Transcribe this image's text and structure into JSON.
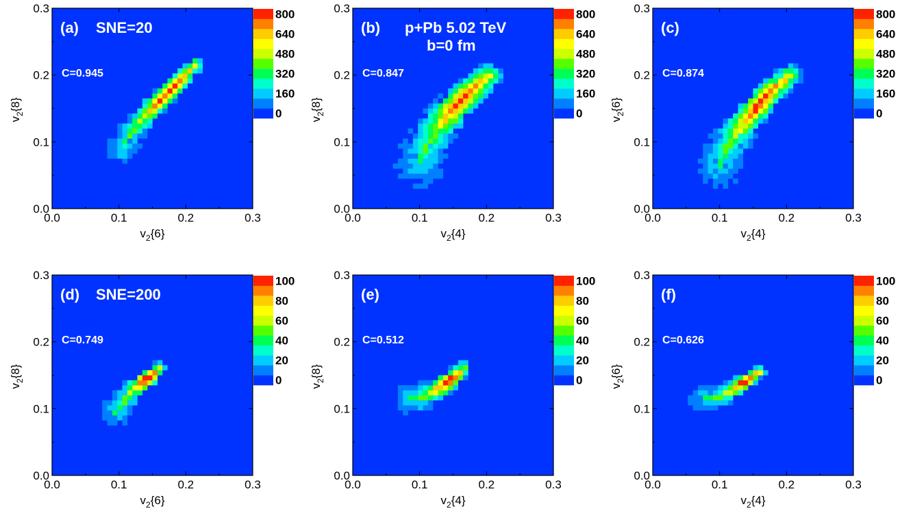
{
  "colors": {
    "plot_bg": "#0033ff",
    "frame": "#000000",
    "annotation_text": "#ffffff",
    "colormap": [
      "#0033ff",
      "#0080ff",
      "#00ccff",
      "#00ffcc",
      "#00ff55",
      "#55ff00",
      "#ccff00",
      "#ffff00",
      "#ffcc00",
      "#ff8000",
      "#ff2200"
    ]
  },
  "chart_data": [
    {
      "type": "heatmap",
      "panel": "(a)",
      "title": "SNE=20",
      "subtitle": "",
      "correlation": "C=0.945",
      "xlabel": "v2{6}",
      "ylabel": "v2{8}",
      "xlim": [
        0,
        0.3
      ],
      "ylim": [
        0,
        0.3
      ],
      "xticks": [
        "0.0",
        "0.1",
        "0.2",
        "0.3"
      ],
      "yticks": [
        "0.0",
        "0.1",
        "0.2",
        "0.3"
      ],
      "colorbar": {
        "min": 0,
        "max": 880,
        "ticks": [
          "0",
          "160",
          "320",
          "480",
          "640",
          "800"
        ]
      },
      "bin_width": 0.0075,
      "ridge": [
        [
          0.105,
          0.09
        ],
        [
          0.115,
          0.11
        ],
        [
          0.13,
          0.13
        ],
        [
          0.15,
          0.15
        ],
        [
          0.17,
          0.17
        ],
        [
          0.19,
          0.19
        ],
        [
          0.215,
          0.215
        ]
      ],
      "halo": 0.024,
      "slope": 1.0
    },
    {
      "type": "heatmap",
      "panel": "(b)",
      "title": "p+Pb 5.02 TeV",
      "subtitle": "b=0 fm",
      "correlation": "C=0.847",
      "xlabel": "v2{4}",
      "ylabel": "v2{8}",
      "xlim": [
        0,
        0.3
      ],
      "ylim": [
        0,
        0.3
      ],
      "xticks": [
        "0.0",
        "0.1",
        "0.2",
        "0.3"
      ],
      "yticks": [
        "0.0",
        "0.1",
        "0.2",
        "0.3"
      ],
      "colorbar": {
        "min": 0,
        "max": 880,
        "ticks": [
          "0",
          "160",
          "320",
          "480",
          "640",
          "800"
        ]
      },
      "bin_width": 0.0075,
      "ridge": [
        [
          0.1,
          0.07
        ],
        [
          0.11,
          0.09
        ],
        [
          0.13,
          0.125
        ],
        [
          0.15,
          0.15
        ],
        [
          0.17,
          0.17
        ],
        [
          0.205,
          0.2
        ]
      ],
      "halo": 0.038,
      "slope": 0.95
    },
    {
      "type": "heatmap",
      "panel": "(c)",
      "title": "",
      "subtitle": "",
      "correlation": "C=0.874",
      "xlabel": "v2{4}",
      "ylabel": "v2{6}",
      "xlim": [
        0,
        0.3
      ],
      "ylim": [
        0,
        0.3
      ],
      "xticks": [
        "0.0",
        "0.1",
        "0.2",
        "0.3"
      ],
      "yticks": [
        "0.0",
        "0.1",
        "0.2",
        "0.3"
      ],
      "colorbar": {
        "min": 0,
        "max": 880,
        "ticks": [
          "0",
          "160",
          "320",
          "480",
          "640",
          "800"
        ]
      },
      "bin_width": 0.0075,
      "ridge": [
        [
          0.1,
          0.065
        ],
        [
          0.11,
          0.09
        ],
        [
          0.13,
          0.12
        ],
        [
          0.15,
          0.145
        ],
        [
          0.17,
          0.17
        ],
        [
          0.205,
          0.2
        ]
      ],
      "halo": 0.034,
      "slope": 0.97
    },
    {
      "type": "heatmap",
      "panel": "(d)",
      "title": "SNE=200",
      "subtitle": "",
      "correlation": "C=0.749",
      "xlabel": "v2{6}",
      "ylabel": "v2{8}",
      "xlim": [
        0,
        0.3
      ],
      "ylim": [
        0,
        0.3
      ],
      "xticks": [
        "0.0",
        "0.1",
        "0.2",
        "0.3"
      ],
      "yticks": [
        "0.0",
        "0.1",
        "0.2",
        "0.3"
      ],
      "colorbar": {
        "min": 0,
        "max": 110,
        "ticks": [
          "0",
          "20",
          "40",
          "60",
          "80",
          "100"
        ]
      },
      "bin_width": 0.0075,
      "ridge": [
        [
          0.095,
          0.095
        ],
        [
          0.11,
          0.115
        ],
        [
          0.12,
          0.125
        ],
        [
          0.135,
          0.14
        ],
        [
          0.15,
          0.15
        ],
        [
          0.16,
          0.16
        ]
      ],
      "halo": 0.022,
      "slope": 1.0
    },
    {
      "type": "heatmap",
      "panel": "(e)",
      "title": "",
      "subtitle": "",
      "correlation": "C=0.512",
      "xlabel": "v2{4}",
      "ylabel": "v2{8}",
      "xlim": [
        0,
        0.3
      ],
      "ylim": [
        0,
        0.3
      ],
      "xticks": [
        "0.0",
        "0.1",
        "0.2",
        "0.3"
      ],
      "yticks": [
        "0.0",
        "0.1",
        "0.2",
        "0.3"
      ],
      "colorbar": {
        "min": 0,
        "max": 110,
        "ticks": [
          "0",
          "20",
          "40",
          "60",
          "80",
          "100"
        ]
      },
      "bin_width": 0.0075,
      "ridge": [
        [
          0.085,
          0.115
        ],
        [
          0.1,
          0.115
        ],
        [
          0.12,
          0.125
        ],
        [
          0.135,
          0.135
        ],
        [
          0.15,
          0.145
        ],
        [
          0.165,
          0.16
        ]
      ],
      "halo": 0.024,
      "slope": 0.5
    },
    {
      "type": "heatmap",
      "panel": "(f)",
      "title": "",
      "subtitle": "",
      "correlation": "C=0.626",
      "xlabel": "v2{4}",
      "ylabel": "v2{6}",
      "xlim": [
        0,
        0.3
      ],
      "ylim": [
        0,
        0.3
      ],
      "xticks": [
        "0.0",
        "0.1",
        "0.2",
        "0.3"
      ],
      "yticks": [
        "0.0",
        "0.1",
        "0.2",
        "0.3"
      ],
      "colorbar": {
        "min": 0,
        "max": 110,
        "ticks": [
          "0",
          "20",
          "40",
          "60",
          "80",
          "100"
        ]
      },
      "bin_width": 0.0075,
      "ridge": [
        [
          0.075,
          0.115
        ],
        [
          0.095,
          0.115
        ],
        [
          0.115,
          0.125
        ],
        [
          0.13,
          0.135
        ],
        [
          0.145,
          0.145
        ],
        [
          0.16,
          0.155
        ]
      ],
      "halo": 0.02,
      "slope": 0.4
    }
  ]
}
